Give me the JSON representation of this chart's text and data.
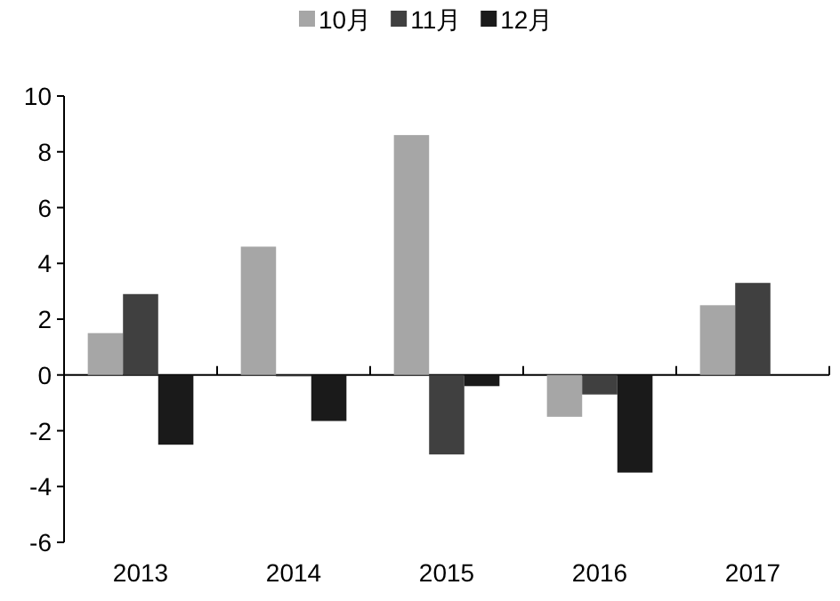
{
  "chart_data": {
    "type": "bar",
    "categories": [
      "2013",
      "2014",
      "2015",
      "2016",
      "2017"
    ],
    "series": [
      {
        "name": "10月",
        "color": "#a6a6a6",
        "values": [
          1.5,
          4.6,
          8.6,
          -1.5,
          2.5
        ]
      },
      {
        "name": "11月",
        "color": "#404040",
        "values": [
          2.9,
          -0.05,
          -2.85,
          -0.7,
          3.3
        ]
      },
      {
        "name": "12月",
        "color": "#1a1a1a",
        "values": [
          -2.5,
          -1.65,
          -0.4,
          -3.5,
          null
        ]
      }
    ],
    "ylim": [
      -6,
      10
    ],
    "yticks": [
      -6,
      -4,
      -2,
      0,
      2,
      4,
      6,
      8,
      10
    ],
    "legend": "top"
  }
}
